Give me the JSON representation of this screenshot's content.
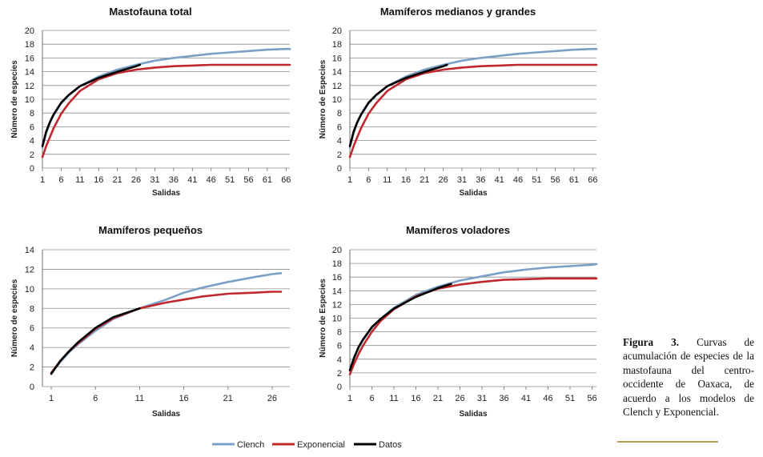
{
  "figure": {
    "caption_label": "Figura 3.",
    "caption_text": "Curvas de acumulación de especies de la mastofauna del centro-occidente de Oaxaca, de acuerdo a los modelos de Clench y Exponencial."
  },
  "legend": [
    {
      "name": "Clench",
      "color": "#7ba0c8"
    },
    {
      "name": "Exponencial",
      "color": "#c0282d"
    },
    {
      "name": "Datos",
      "color": "#000000"
    }
  ],
  "chart_data": [
    {
      "type": "line",
      "title": "Mastofauna total",
      "xlabel": "Salidas",
      "ylabel": "Número de especies",
      "xlim": [
        1,
        67
      ],
      "ylim": [
        0,
        20
      ],
      "xticks": [
        1,
        6,
        11,
        16,
        21,
        26,
        31,
        36,
        41,
        46,
        51,
        56,
        61,
        66
      ],
      "yticks": [
        0,
        2,
        4,
        6,
        8,
        10,
        12,
        14,
        16,
        18,
        20
      ],
      "series": [
        {
          "name": "Clench",
          "x": [
            1,
            2,
            3,
            4,
            6,
            8,
            11,
            16,
            21,
            26,
            31,
            36,
            41,
            46,
            51,
            56,
            61,
            66,
            67
          ],
          "y": [
            3.0,
            5.1,
            6.6,
            7.7,
            9.4,
            10.6,
            11.9,
            13.3,
            14.3,
            15.0,
            15.6,
            16.0,
            16.3,
            16.6,
            16.8,
            17.0,
            17.2,
            17.3,
            17.3
          ]
        },
        {
          "name": "Exponencial",
          "x": [
            1,
            2,
            3,
            4,
            6,
            8,
            11,
            16,
            21,
            26,
            31,
            36,
            41,
            46,
            51,
            56,
            61,
            66,
            67
          ],
          "y": [
            1.6,
            3.2,
            4.5,
            5.8,
            7.9,
            9.4,
            11.2,
            12.9,
            13.8,
            14.3,
            14.6,
            14.8,
            14.9,
            15.0,
            15.0,
            15.0,
            15.0,
            15.0,
            15.0
          ]
        },
        {
          "name": "Datos",
          "x": [
            1,
            2,
            3,
            4,
            6,
            8,
            11,
            16,
            21,
            26,
            27
          ],
          "y": [
            3.2,
            5.3,
            6.7,
            7.8,
            9.5,
            10.6,
            11.9,
            13.1,
            14.0,
            14.8,
            15.0
          ]
        }
      ]
    },
    {
      "type": "line",
      "title": "Mamíferos medianos y grandes",
      "xlabel": "Salidas",
      "ylabel": "Número de Especies",
      "xlim": [
        1,
        67
      ],
      "ylim": [
        0,
        20
      ],
      "xticks": [
        1,
        6,
        11,
        16,
        21,
        26,
        31,
        36,
        41,
        46,
        51,
        56,
        61,
        66
      ],
      "yticks": [
        0,
        2,
        4,
        6,
        8,
        10,
        12,
        14,
        16,
        18,
        20
      ],
      "series": [
        {
          "name": "Clench",
          "x": [
            1,
            2,
            3,
            4,
            6,
            8,
            11,
            16,
            21,
            26,
            31,
            36,
            41,
            46,
            51,
            56,
            61,
            66,
            67
          ],
          "y": [
            3.0,
            5.1,
            6.6,
            7.7,
            9.4,
            10.6,
            11.9,
            13.3,
            14.3,
            15.0,
            15.6,
            16.0,
            16.3,
            16.6,
            16.8,
            17.0,
            17.2,
            17.3,
            17.3
          ]
        },
        {
          "name": "Exponencial",
          "x": [
            1,
            2,
            3,
            4,
            6,
            8,
            11,
            16,
            21,
            26,
            31,
            36,
            41,
            46,
            51,
            56,
            61,
            66,
            67
          ],
          "y": [
            1.6,
            3.2,
            4.5,
            5.8,
            7.9,
            9.4,
            11.2,
            12.9,
            13.8,
            14.3,
            14.6,
            14.8,
            14.9,
            15.0,
            15.0,
            15.0,
            15.0,
            15.0,
            15.0
          ]
        },
        {
          "name": "Datos",
          "x": [
            1,
            2,
            3,
            4,
            6,
            8,
            11,
            16,
            21,
            26,
            27
          ],
          "y": [
            3.2,
            5.3,
            6.7,
            7.8,
            9.5,
            10.6,
            11.9,
            13.1,
            14.0,
            14.8,
            15.0
          ]
        }
      ]
    },
    {
      "type": "line",
      "title": "Mamíferos pequeños",
      "xlabel": "Salidas",
      "ylabel": "Número de especies",
      "xlim": [
        0,
        28
      ],
      "ylim": [
        0,
        14
      ],
      "xticks": [
        1,
        6,
        11,
        16,
        21,
        26
      ],
      "yticks": [
        0,
        2,
        4,
        6,
        8,
        10,
        12,
        14
      ],
      "series": [
        {
          "name": "Clench",
          "x": [
            1,
            2,
            3,
            4,
            6,
            8,
            11,
            14,
            16,
            18,
            21,
            24,
            26,
            27
          ],
          "y": [
            1.4,
            2.5,
            3.5,
            4.3,
            5.7,
            6.9,
            8.0,
            8.9,
            9.6,
            10.1,
            10.7,
            11.2,
            11.5,
            11.6
          ]
        },
        {
          "name": "Exponencial",
          "x": [
            1,
            2,
            3,
            4,
            6,
            8,
            11,
            14,
            16,
            18,
            21,
            24,
            26,
            27
          ],
          "y": [
            1.4,
            2.6,
            3.6,
            4.4,
            5.9,
            7.0,
            8.0,
            8.6,
            8.9,
            9.2,
            9.5,
            9.6,
            9.7,
            9.7
          ]
        },
        {
          "name": "Datos",
          "x": [
            1,
            2,
            3,
            4,
            6,
            8,
            11
          ],
          "y": [
            1.3,
            2.6,
            3.6,
            4.5,
            6.0,
            7.1,
            8.0
          ]
        }
      ]
    },
    {
      "type": "line",
      "title": "Mamíferos voladores",
      "xlabel": "Salidas",
      "ylabel": "Número de Especies",
      "xlim": [
        1,
        57
      ],
      "ylim": [
        0,
        20
      ],
      "xticks": [
        1,
        6,
        11,
        16,
        21,
        26,
        31,
        36,
        41,
        46,
        51,
        56
      ],
      "yticks": [
        0,
        2,
        4,
        6,
        8,
        10,
        12,
        14,
        16,
        18,
        20
      ],
      "series": [
        {
          "name": "Clench",
          "x": [
            1,
            2,
            3,
            4,
            6,
            8,
            11,
            16,
            21,
            26,
            31,
            36,
            41,
            46,
            51,
            56,
            57
          ],
          "y": [
            2.3,
            4.2,
            5.7,
            6.8,
            8.6,
            9.9,
            11.5,
            13.4,
            14.6,
            15.5,
            16.1,
            16.7,
            17.1,
            17.4,
            17.6,
            17.8,
            17.9
          ]
        },
        {
          "name": "Exponencial",
          "x": [
            1,
            2,
            3,
            4,
            6,
            8,
            11,
            16,
            21,
            26,
            31,
            36,
            41,
            46,
            51,
            56,
            57
          ],
          "y": [
            1.8,
            3.4,
            4.8,
            6.0,
            8.0,
            9.6,
            11.3,
            13.2,
            14.3,
            14.9,
            15.3,
            15.6,
            15.7,
            15.8,
            15.8,
            15.8,
            15.8
          ]
        },
        {
          "name": "Datos",
          "x": [
            1,
            2,
            3,
            4,
            6,
            8,
            11,
            16,
            21,
            24
          ],
          "y": [
            2.4,
            4.3,
            5.8,
            6.9,
            8.7,
            9.9,
            11.4,
            13.1,
            14.4,
            15.0
          ]
        }
      ]
    }
  ]
}
